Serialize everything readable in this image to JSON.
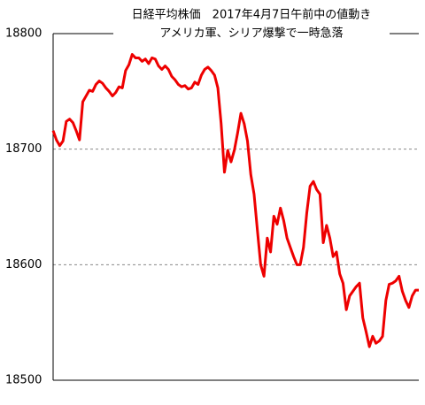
{
  "chart_data": {
    "type": "line",
    "title": "日経平均株価　2017年4月7日午前中の値動き",
    "subtitle": "アメリカ軍、シリア爆撃で一時急落",
    "values": [
      18716,
      18708,
      18703,
      18707,
      18724,
      18726,
      18723,
      18716,
      18708,
      18741,
      18746,
      18751,
      18750,
      18756,
      18759,
      18757,
      18753,
      18750,
      18746,
      18749,
      18754,
      18753,
      18768,
      18773,
      18782,
      18779,
      18779,
      18776,
      18778,
      18774,
      18779,
      18778,
      18772,
      18769,
      18772,
      18769,
      18763,
      18760,
      18756,
      18754,
      18755,
      18752,
      18753,
      18758,
      18756,
      18764,
      18769,
      18771,
      18768,
      18764,
      18753,
      18722,
      18680,
      18699,
      18689,
      18699,
      18714,
      18731,
      18722,
      18707,
      18678,
      18661,
      18630,
      18600,
      18590,
      18623,
      18611,
      18642,
      18635,
      18649,
      18638,
      18623,
      18615,
      18607,
      18600,
      18600,
      18615,
      18645,
      18668,
      18672,
      18665,
      18661,
      18619,
      18634,
      18623,
      18607,
      18611,
      18592,
      18584,
      18561,
      18573,
      18577,
      18581,
      18584,
      18554,
      18542,
      18529,
      18538,
      18532,
      18534,
      18538,
      18569,
      18583,
      18584,
      18586,
      18590,
      18577,
      18569,
      18563,
      18573,
      18578,
      18578
    ],
    "color": "#ee0000",
    "ylim": [
      18500,
      18800
    ],
    "yticks": [
      18500,
      18600,
      18700,
      18800
    ],
    "grid": true
  }
}
